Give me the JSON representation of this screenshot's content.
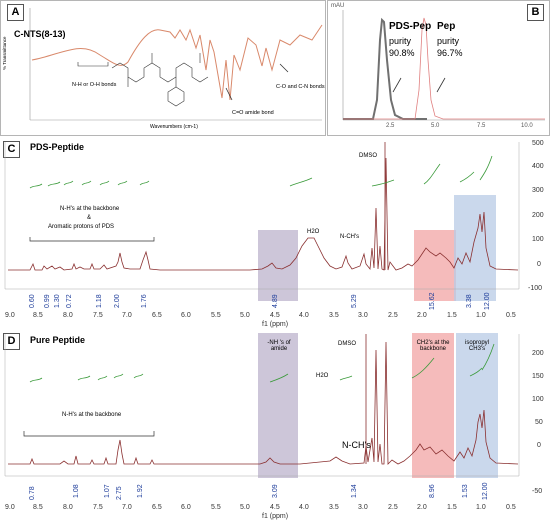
{
  "panelA": {
    "letter": "A",
    "sample": "C-NTS(8-13)",
    "x_axis_label": "Wavenumbers (cm-1)",
    "y_axis_label": "% Transmittance",
    "annotations": {
      "nh": "N-H or O-H bonds",
      "co_amide": "C=O amide bond",
      "con": "C-O and C-N bonds"
    }
  },
  "panelB": {
    "letter": "B",
    "unit": "mAU",
    "peak1": {
      "name": "PDS-Pep",
      "purity_label": "purity",
      "purity": "90.8%"
    },
    "peak2": {
      "name": "Pep",
      "purity_label": "purity",
      "purity": "96.7%"
    },
    "x_ticks": [
      "2.5",
      "5.0",
      "7.5",
      "10.0"
    ]
  },
  "panelC": {
    "letter": "C",
    "title": "PDS-Peptide",
    "labels": {
      "nh": "N-H's at the backbone",
      "amp": "&",
      "arom": "Aromatic protons of PDS",
      "h2o": "H2O",
      "nch": "N-CH's",
      "dmso": "DMSO"
    },
    "integrals": [
      "0.60",
      "0.99",
      "1.30",
      "0.72",
      "1.18",
      "2.00",
      "1.76",
      "4.89",
      "5.29",
      "15.62",
      "3.38",
      "12.00"
    ],
    "x_ticks": [
      "9.0",
      "8.5",
      "8.0",
      "7.5",
      "7.0",
      "6.5",
      "6.0",
      "5.5",
      "5.0",
      "4.5",
      "4.0",
      "3.5",
      "3.0",
      "2.5",
      "2.0",
      "1.5",
      "1.0",
      "0.5"
    ],
    "x_label": "f1 (ppm)",
    "y_ticks": [
      "500",
      "400",
      "300",
      "200",
      "100",
      "0",
      "-100"
    ]
  },
  "panelD": {
    "letter": "D",
    "title": "Pure Peptide",
    "labels": {
      "nh": "N-H's at the backbone",
      "nh_amide": "-NH 's of amide",
      "h2o": "H2O",
      "dmso": "DMSO",
      "ch2": "CH2's at the backbone",
      "iso": "isopropyl CH3's",
      "nch": "N-CH's"
    },
    "integrals": [
      "0.78",
      "1.08",
      "1.07",
      "2.75",
      "1.92",
      "3.09",
      "1.34",
      "8.96",
      "1.53",
      "12.00"
    ],
    "x_ticks": [
      "9.0",
      "8.5",
      "8.0",
      "7.5",
      "7.0",
      "6.5",
      "6.0",
      "5.5",
      "5.0",
      "4.5",
      "4.0",
      "3.5",
      "3.0",
      "2.5",
      "2.0",
      "1.5",
      "1.0",
      "0.5"
    ],
    "x_label": "f1 (ppm)",
    "y_ticks": [
      "200",
      "150",
      "100",
      "50",
      "0",
      "-50"
    ]
  },
  "colors": {
    "ir_line": "#d9896b",
    "hplc_pds": "#707070",
    "hplc_pep": "#e08080",
    "nmr_line": "#8a3030",
    "integral": "#3a9a3a",
    "integral_value": "#1d3c9a",
    "purple_region": "#bcb3cc",
    "red_region": "#f2a4a4",
    "blue_region": "#b8cbe6"
  }
}
